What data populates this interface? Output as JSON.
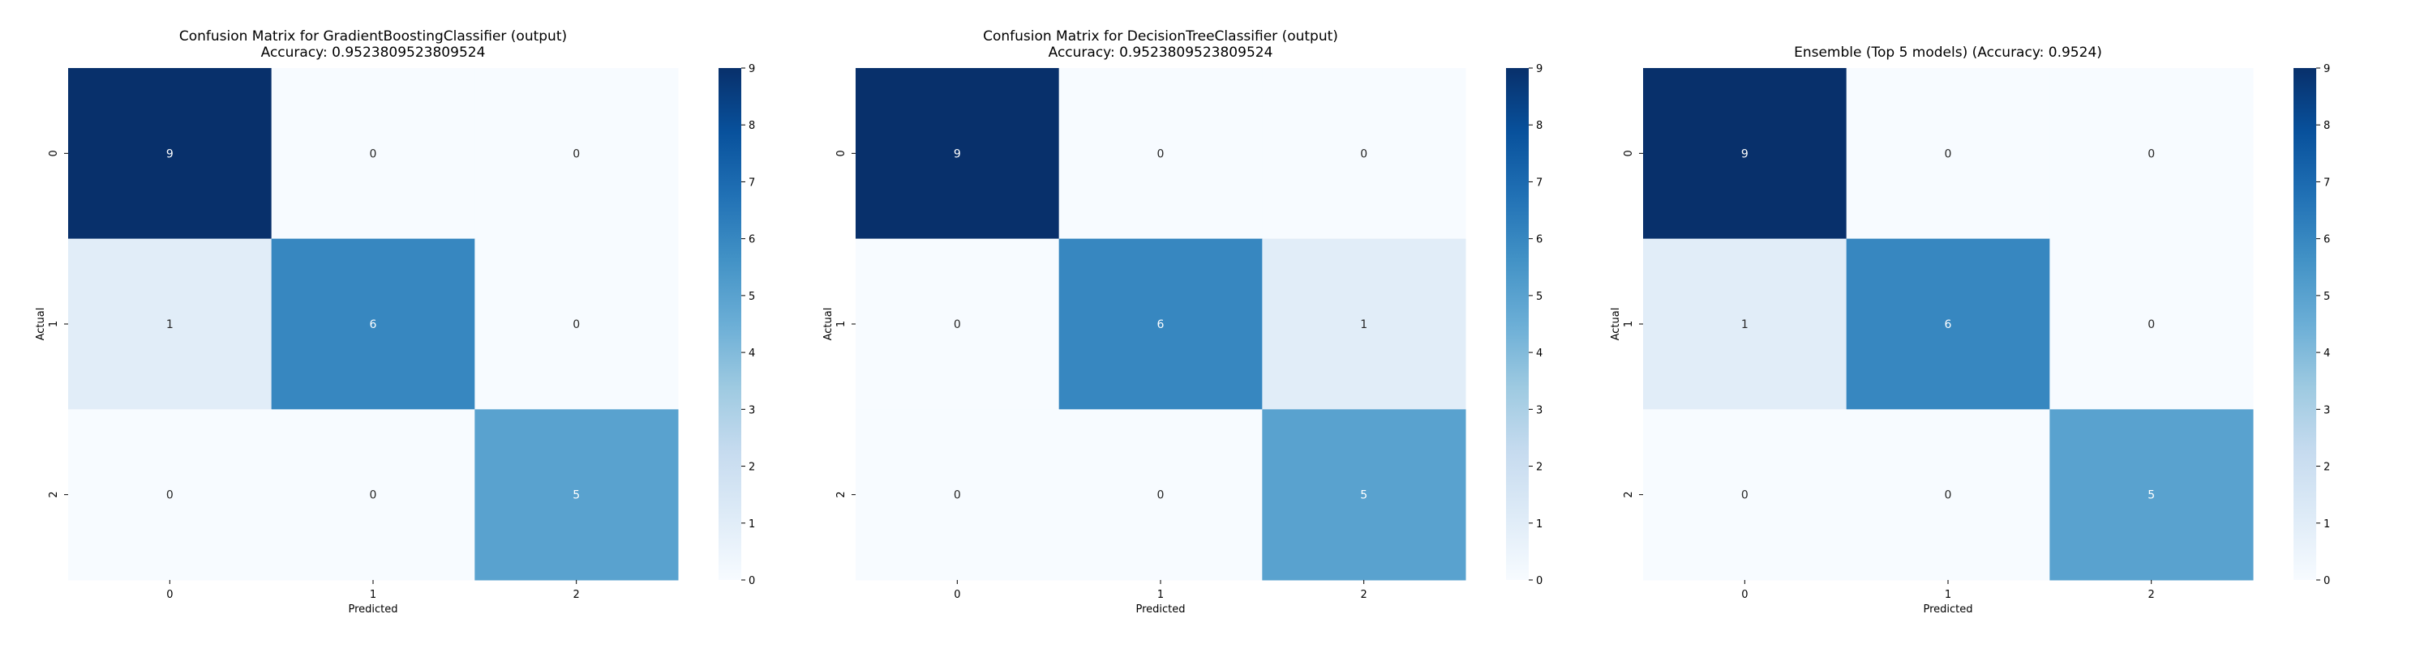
{
  "chart_data": [
    {
      "type": "heatmap",
      "title_lines": [
        "Confusion Matrix for GradientBoostingClassifier (output)",
        "Accuracy: 0.9523809523809524"
      ],
      "xlabel": "Predicted",
      "ylabel": "Actual",
      "x_categories": [
        "0",
        "1",
        "2"
      ],
      "y_categories": [
        "0",
        "1",
        "2"
      ],
      "values": [
        [
          9,
          0,
          0
        ],
        [
          1,
          6,
          0
        ],
        [
          0,
          0,
          5
        ]
      ],
      "colorbar": {
        "range": [
          0,
          9
        ],
        "ticks": [
          "0",
          "1",
          "2",
          "3",
          "4",
          "5",
          "6",
          "7",
          "8",
          "9"
        ]
      },
      "colormap": "Blues"
    },
    {
      "type": "heatmap",
      "title_lines": [
        "Confusion Matrix for DecisionTreeClassifier (output)",
        "Accuracy: 0.9523809523809524"
      ],
      "xlabel": "Predicted",
      "ylabel": "Actual",
      "x_categories": [
        "0",
        "1",
        "2"
      ],
      "y_categories": [
        "0",
        "1",
        "2"
      ],
      "values": [
        [
          9,
          0,
          0
        ],
        [
          0,
          6,
          1
        ],
        [
          0,
          0,
          5
        ]
      ],
      "colorbar": {
        "range": [
          0,
          9
        ],
        "ticks": [
          "0",
          "1",
          "2",
          "3",
          "4",
          "5",
          "6",
          "7",
          "8",
          "9"
        ]
      },
      "colormap": "Blues"
    },
    {
      "type": "heatmap",
      "title_lines": [
        "Ensemble (Top 5 models) (Accuracy: 0.9524)"
      ],
      "xlabel": "Predicted",
      "ylabel": "Actual",
      "x_categories": [
        "0",
        "1",
        "2"
      ],
      "y_categories": [
        "0",
        "1",
        "2"
      ],
      "values": [
        [
          9,
          0,
          0
        ],
        [
          1,
          6,
          0
        ],
        [
          0,
          0,
          5
        ]
      ],
      "colorbar": {
        "range": [
          0,
          9
        ],
        "ticks": [
          "0",
          "1",
          "2",
          "3",
          "4",
          "5",
          "6",
          "7",
          "8",
          "9"
        ]
      },
      "colormap": "Blues"
    }
  ]
}
